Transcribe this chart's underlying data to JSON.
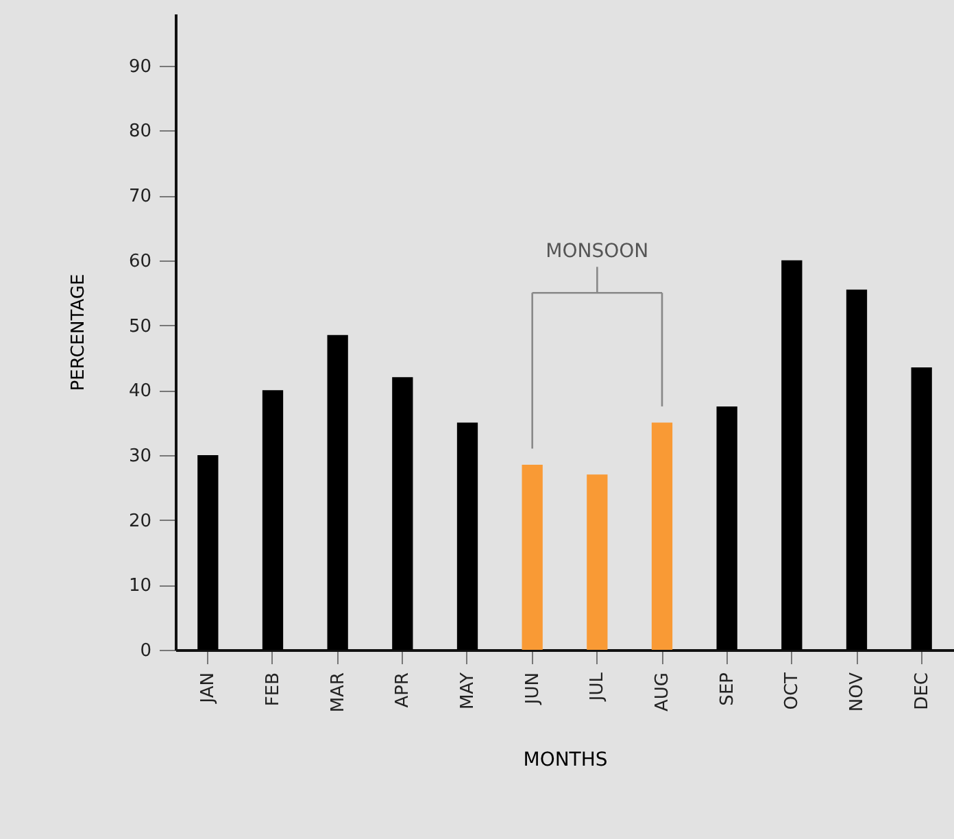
{
  "chart_data": {
    "type": "bar",
    "xlabel": "MONTHS",
    "ylabel": "PERCENTAGE",
    "categories": [
      "JAN",
      "FEB",
      "MAR",
      "APR",
      "MAY",
      "JUN",
      "JUL",
      "AUG",
      "SEP",
      "OCT",
      "NOV",
      "DEC"
    ],
    "values": [
      30,
      40,
      48.5,
      42,
      35,
      28.5,
      27,
      35,
      37.5,
      60,
      55.5,
      43.5
    ],
    "colors": [
      "#000000",
      "#000000",
      "#000000",
      "#000000",
      "#000000",
      "#f99a35",
      "#f99a35",
      "#f99a35",
      "#000000",
      "#000000",
      "#000000",
      "#000000"
    ],
    "ylim": [
      0,
      98
    ],
    "yticks": [
      0,
      10,
      20,
      30,
      40,
      50,
      60,
      70,
      80,
      90
    ],
    "annotations": [
      "MONSOON"
    ]
  }
}
